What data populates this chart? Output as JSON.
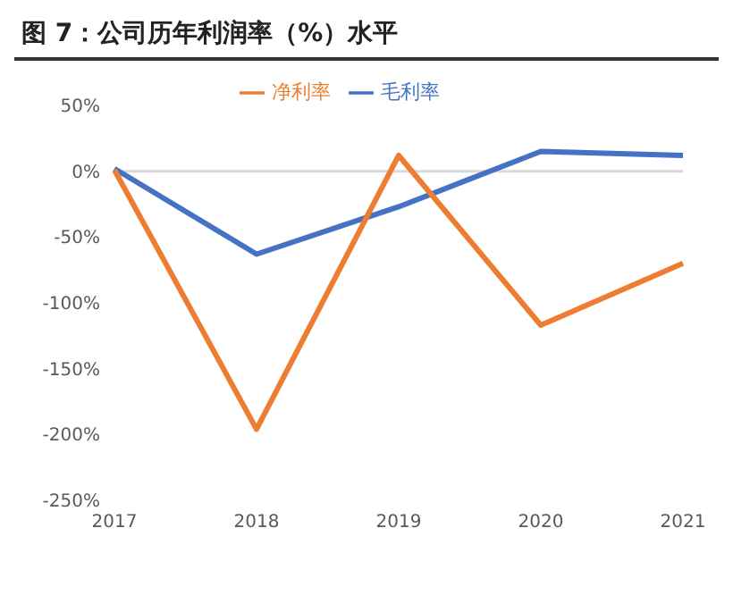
{
  "chart_data": {
    "type": "line",
    "title": "图 7：公司历年利润率（%）水平",
    "categories": [
      "2017",
      "2018",
      "2019",
      "2020",
      "2021"
    ],
    "series": [
      {
        "name": "毛利率",
        "color": "#4472c4",
        "values": [
          2,
          -63,
          -27,
          15,
          12
        ]
      },
      {
        "name": "净利率",
        "color": "#ed7d31",
        "values": [
          1,
          -196,
          12,
          -117,
          -70
        ]
      }
    ],
    "ylim": [
      -250,
      50
    ],
    "yticks": [
      {
        "value": 50,
        "label": "50%"
      },
      {
        "value": 0,
        "label": "0%"
      },
      {
        "value": -50,
        "label": "-50%"
      },
      {
        "value": -100,
        "label": "-100%"
      },
      {
        "value": -150,
        "label": "-150%"
      },
      {
        "value": -200,
        "label": "-200%"
      },
      {
        "value": -250,
        "label": "-250%"
      }
    ],
    "ref_lines": [
      {
        "axis": "y",
        "value": 0,
        "color": "#d9d9d9"
      }
    ],
    "grid": false,
    "legend": "top",
    "marker": "none",
    "line_style": "solid"
  }
}
